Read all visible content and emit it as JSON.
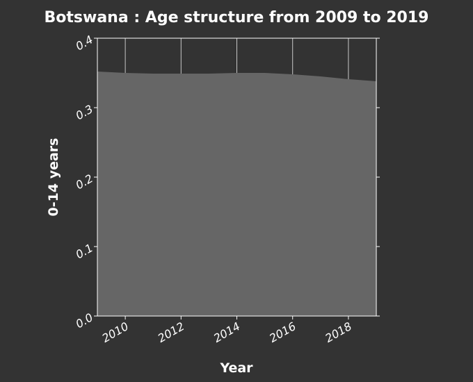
{
  "chart_data": {
    "type": "area",
    "title": "Botswana : Age structure from 2009 to 2019",
    "xlabel": "Year",
    "ylabel": "0-14 years",
    "xlim": [
      2009,
      2019
    ],
    "ylim": [
      0,
      0.4
    ],
    "x_ticks": [
      2010,
      2012,
      2014,
      2016,
      2018
    ],
    "x_tick_labels": [
      "2010",
      "2012",
      "2014",
      "2016",
      "2018"
    ],
    "y_ticks": [
      0.0,
      0.1,
      0.2,
      0.3,
      0.4
    ],
    "y_tick_labels": [
      "0.0",
      "0.1",
      "0.2",
      "0.3",
      "0.4"
    ],
    "grid": "vertical",
    "x": [
      2009,
      2010,
      2011,
      2012,
      2013,
      2014,
      2015,
      2016,
      2017,
      2018,
      2019
    ],
    "y": [
      0.352,
      0.35,
      0.349,
      0.349,
      0.349,
      0.35,
      0.35,
      0.348,
      0.345,
      0.341,
      0.338
    ],
    "colors": {
      "background": "#333333",
      "area_fill": "#666666",
      "frame": "#ffffff",
      "grid": "#c8c8c8",
      "text": "#ffffff"
    }
  }
}
